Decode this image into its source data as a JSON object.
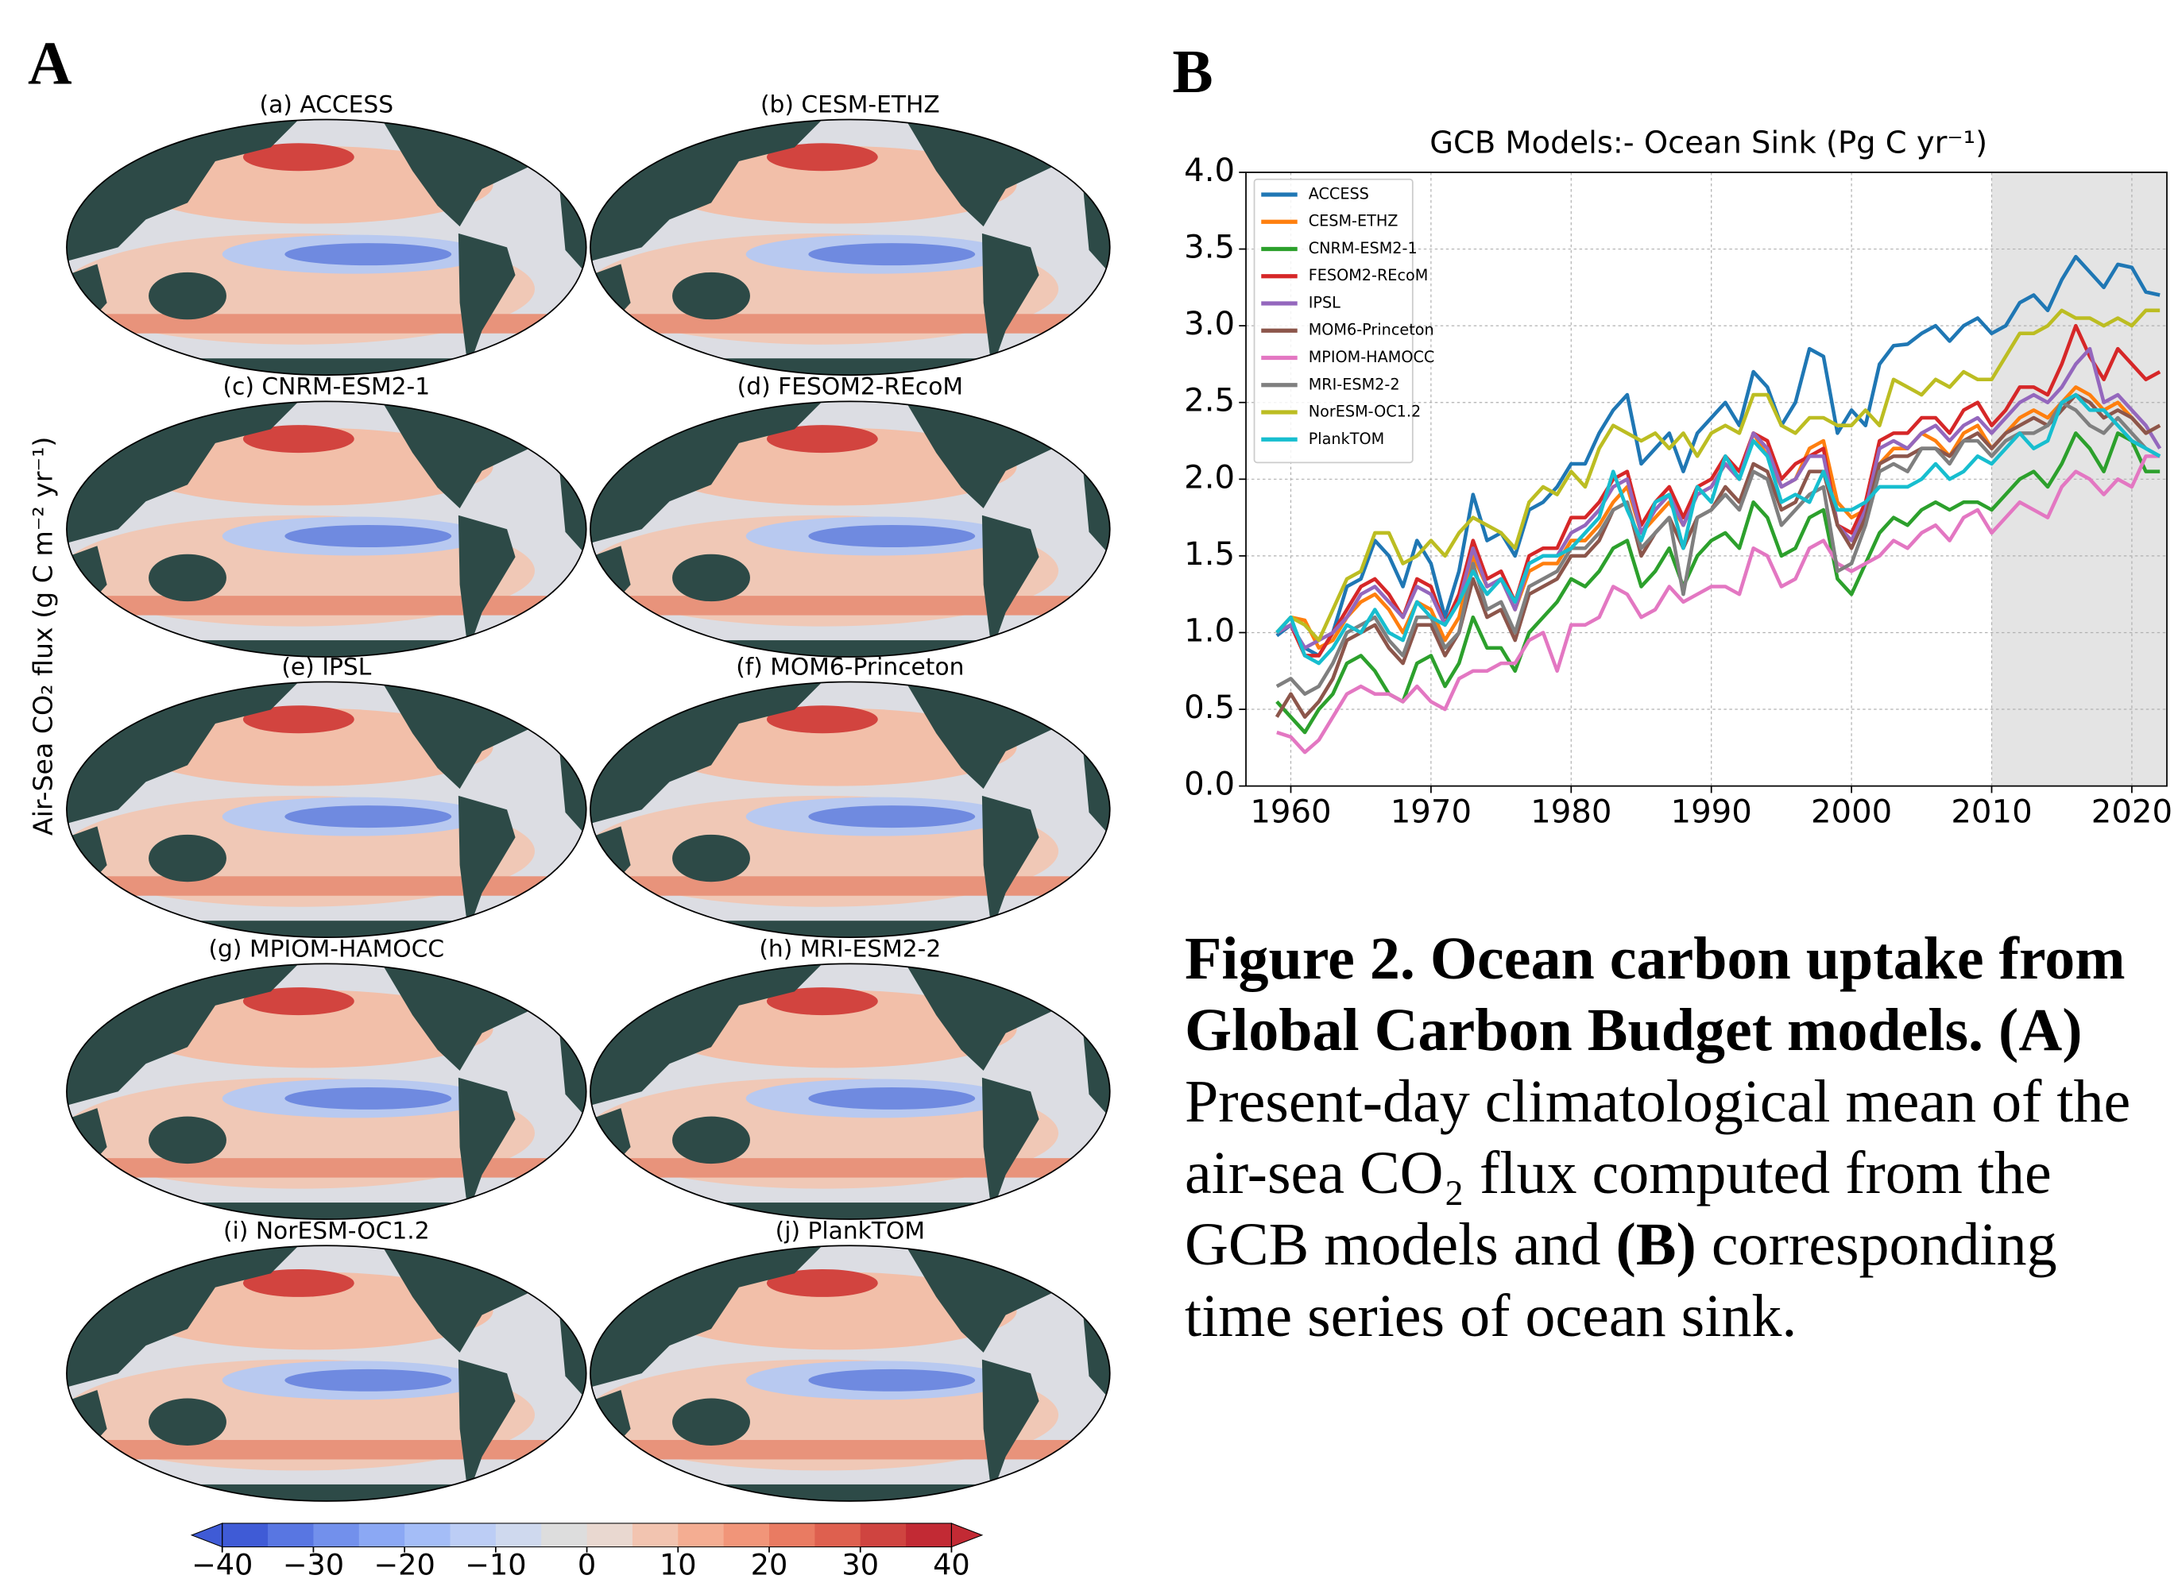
{
  "panel_a": {
    "label": "A",
    "ylabel": "Air-Sea CO₂ flux (g C m⁻² yr⁻¹)",
    "maps": [
      "(a) ACCESS",
      "(b) CESM-ETHZ",
      "(c) CNRM-ESM2-1",
      "(d) FESOM2-REcoM",
      "(e) IPSL",
      "(f) MOM6-Princeton",
      "(g) MPIOM-HAMOCC",
      "(h) MRI-ESM2-2",
      "(i) NorESM-OC1.2",
      "(j) PlankTOM"
    ],
    "colorbar": {
      "lim": [
        -40,
        40
      ],
      "ticks": [
        {
          "value": -40,
          "label": "−40"
        },
        {
          "value": -30,
          "label": "−30"
        },
        {
          "value": -20,
          "label": "−20"
        },
        {
          "value": -10,
          "label": "−10"
        },
        0,
        10,
        20,
        30,
        40
      ],
      "colors": [
        "#3f5bd6",
        "#5876e2",
        "#7290ec",
        "#8ba8f4",
        "#a4bdf7",
        "#bccdf5",
        "#cfd9ee",
        "#dddddd",
        "#e9d8d0",
        "#f2c4b0",
        "#f4ad92",
        "#f19579",
        "#e97b62",
        "#de604f",
        "#cf4440",
        "#c22a34"
      ]
    }
  },
  "chart_data": {
    "type": "line",
    "panel_label": "B",
    "title": "GCB Models:- Ocean Sink (Pg C yr⁻¹)",
    "x": [
      1959,
      1960,
      1961,
      1962,
      1963,
      1964,
      1965,
      1966,
      1967,
      1968,
      1969,
      1970,
      1971,
      1972,
      1973,
      1974,
      1975,
      1976,
      1977,
      1978,
      1979,
      1980,
      1981,
      1982,
      1983,
      1984,
      1985,
      1986,
      1987,
      1988,
      1989,
      1990,
      1991,
      1992,
      1993,
      1994,
      1995,
      1996,
      1997,
      1998,
      1999,
      2000,
      2001,
      2002,
      2003,
      2004,
      2005,
      2006,
      2007,
      2008,
      2009,
      2010,
      2011,
      2012,
      2013,
      2014,
      2015,
      2016,
      2017,
      2018,
      2019,
      2020,
      2021,
      2022
    ],
    "xlim": [
      1956.8,
      2022.5
    ],
    "xticks": [
      1960,
      1970,
      1980,
      1990,
      2000,
      2010,
      2020
    ],
    "ylim": [
      0,
      4
    ],
    "yticks": [
      {
        "value": 0,
        "label": "0.0"
      },
      {
        "value": 0.5,
        "label": "0.5"
      },
      {
        "value": 1,
        "label": "1.0"
      },
      {
        "value": 1.5,
        "label": "1.5"
      },
      {
        "value": 2,
        "label": "2.0"
      },
      {
        "value": 2.5,
        "label": "2.5"
      },
      {
        "value": 3,
        "label": "3.0"
      },
      {
        "value": 3.5,
        "label": "3.5"
      },
      {
        "value": 4,
        "label": "4.0"
      }
    ],
    "grid": true,
    "legend": "upper-left",
    "shade_from": 2010,
    "series": [
      {
        "name": "ACCESS",
        "color": "#1f77b4",
        "values": [
          0.98,
          1.05,
          0.9,
          0.85,
          1.0,
          1.3,
          1.35,
          1.6,
          1.5,
          1.3,
          1.6,
          1.45,
          1.1,
          1.4,
          1.9,
          1.6,
          1.65,
          1.5,
          1.8,
          1.85,
          1.95,
          2.1,
          2.1,
          2.3,
          2.45,
          2.55,
          2.1,
          2.2,
          2.3,
          2.05,
          2.3,
          2.4,
          2.5,
          2.35,
          2.7,
          2.6,
          2.35,
          2.5,
          2.85,
          2.8,
          2.3,
          2.45,
          2.35,
          2.75,
          2.87,
          2.88,
          2.95,
          3.0,
          2.9,
          3.0,
          3.05,
          2.95,
          3.0,
          3.15,
          3.2,
          3.1,
          3.3,
          3.45,
          3.35,
          3.25,
          3.4,
          3.38,
          3.22,
          3.2
        ]
      },
      {
        "name": "CESM-ETHZ",
        "color": "#ff7f0e",
        "values": [
          1.0,
          1.1,
          1.08,
          0.9,
          0.95,
          1.1,
          1.2,
          1.25,
          1.15,
          1.0,
          1.2,
          1.15,
          0.95,
          1.1,
          1.5,
          1.3,
          1.35,
          1.15,
          1.4,
          1.45,
          1.45,
          1.6,
          1.6,
          1.7,
          1.85,
          1.95,
          1.65,
          1.75,
          1.85,
          1.7,
          1.9,
          1.95,
          2.1,
          2.0,
          2.3,
          2.15,
          1.95,
          2.0,
          2.2,
          2.25,
          1.85,
          1.75,
          1.8,
          2.1,
          2.2,
          2.2,
          2.3,
          2.25,
          2.15,
          2.3,
          2.35,
          2.2,
          2.3,
          2.4,
          2.45,
          2.4,
          2.5,
          2.6,
          2.55,
          2.45,
          2.5,
          2.4,
          2.3,
          2.35
        ]
      },
      {
        "name": "CNRM-ESM2-1",
        "color": "#2ca02c",
        "values": [
          0.55,
          0.45,
          0.35,
          0.5,
          0.6,
          0.8,
          0.85,
          0.75,
          0.6,
          0.55,
          0.8,
          0.85,
          0.65,
          0.8,
          1.1,
          0.9,
          0.9,
          0.75,
          1.0,
          1.1,
          1.2,
          1.35,
          1.3,
          1.4,
          1.55,
          1.6,
          1.3,
          1.4,
          1.55,
          1.3,
          1.5,
          1.6,
          1.65,
          1.55,
          1.85,
          1.75,
          1.5,
          1.55,
          1.75,
          1.8,
          1.35,
          1.25,
          1.45,
          1.65,
          1.75,
          1.7,
          1.8,
          1.85,
          1.8,
          1.85,
          1.85,
          1.8,
          1.9,
          2.0,
          2.05,
          1.95,
          2.1,
          2.3,
          2.2,
          2.05,
          2.3,
          2.25,
          2.05,
          2.05
        ]
      },
      {
        "name": "FESOM2-REcoM",
        "color": "#d62728",
        "values": [
          1.0,
          1.05,
          0.85,
          0.85,
          1.0,
          1.15,
          1.3,
          1.35,
          1.25,
          1.1,
          1.35,
          1.3,
          1.05,
          1.25,
          1.6,
          1.35,
          1.4,
          1.2,
          1.5,
          1.55,
          1.55,
          1.75,
          1.75,
          1.85,
          2.0,
          2.05,
          1.7,
          1.85,
          1.95,
          1.75,
          1.95,
          2.0,
          2.15,
          2.05,
          2.3,
          2.25,
          2.0,
          2.1,
          2.15,
          2.2,
          1.7,
          1.65,
          1.85,
          2.25,
          2.3,
          2.3,
          2.4,
          2.4,
          2.3,
          2.45,
          2.5,
          2.35,
          2.45,
          2.6,
          2.6,
          2.55,
          2.75,
          3.0,
          2.8,
          2.65,
          2.85,
          2.75,
          2.65,
          2.7
        ]
      },
      {
        "name": "IPSL",
        "color": "#9467bd",
        "values": [
          1.0,
          1.05,
          0.9,
          0.95,
          1.0,
          1.1,
          1.25,
          1.3,
          1.2,
          1.1,
          1.3,
          1.25,
          1.05,
          1.2,
          1.55,
          1.3,
          1.35,
          1.15,
          1.45,
          1.5,
          1.5,
          1.65,
          1.7,
          1.8,
          1.95,
          2.0,
          1.65,
          1.8,
          1.9,
          1.7,
          1.9,
          1.95,
          2.1,
          2.0,
          2.3,
          2.2,
          1.95,
          2.0,
          2.15,
          2.15,
          1.7,
          1.6,
          1.8,
          2.2,
          2.25,
          2.2,
          2.3,
          2.35,
          2.25,
          2.35,
          2.4,
          2.3,
          2.4,
          2.5,
          2.55,
          2.5,
          2.6,
          2.75,
          2.85,
          2.5,
          2.55,
          2.45,
          2.35,
          2.2
        ]
      },
      {
        "name": "MOM6-Princeton",
        "color": "#8c564b",
        "values": [
          0.45,
          0.6,
          0.45,
          0.55,
          0.7,
          0.95,
          1.0,
          1.05,
          0.9,
          0.8,
          1.05,
          1.05,
          0.85,
          1.0,
          1.35,
          1.1,
          1.15,
          0.95,
          1.25,
          1.3,
          1.35,
          1.5,
          1.5,
          1.6,
          1.8,
          1.85,
          1.5,
          1.65,
          1.75,
          1.55,
          1.75,
          1.8,
          1.95,
          1.85,
          2.1,
          2.05,
          1.8,
          1.85,
          2.05,
          2.05,
          1.7,
          1.55,
          1.75,
          2.1,
          2.15,
          2.15,
          2.2,
          2.2,
          2.15,
          2.25,
          2.3,
          2.2,
          2.3,
          2.35,
          2.4,
          2.35,
          2.45,
          2.55,
          2.5,
          2.4,
          2.45,
          2.4,
          2.3,
          2.35
        ]
      },
      {
        "name": "MPIOM-HAMOCC",
        "color": "#e377c2",
        "values": [
          0.35,
          0.32,
          0.22,
          0.3,
          0.45,
          0.6,
          0.65,
          0.6,
          0.6,
          0.55,
          0.65,
          0.55,
          0.5,
          0.7,
          0.75,
          0.75,
          0.8,
          0.8,
          0.95,
          1.0,
          0.75,
          1.05,
          1.05,
          1.1,
          1.3,
          1.25,
          1.1,
          1.15,
          1.3,
          1.2,
          1.25,
          1.3,
          1.3,
          1.25,
          1.55,
          1.5,
          1.3,
          1.35,
          1.55,
          1.6,
          1.45,
          1.4,
          1.45,
          1.5,
          1.6,
          1.55,
          1.65,
          1.7,
          1.6,
          1.75,
          1.8,
          1.65,
          1.75,
          1.85,
          1.8,
          1.75,
          1.95,
          2.05,
          2.0,
          1.9,
          2.0,
          1.95,
          2.15,
          2.15
        ]
      },
      {
        "name": "MRI-ESM2-2",
        "color": "#7f7f7f",
        "values": [
          0.65,
          0.7,
          0.6,
          0.65,
          0.8,
          1.0,
          1.05,
          1.1,
          0.95,
          0.85,
          1.1,
          1.1,
          0.9,
          1.0,
          1.45,
          1.15,
          1.2,
          1.0,
          1.3,
          1.35,
          1.4,
          1.55,
          1.55,
          1.65,
          1.8,
          1.85,
          1.55,
          1.65,
          1.75,
          1.25,
          1.75,
          1.8,
          1.9,
          1.8,
          2.05,
          2.0,
          1.7,
          1.8,
          1.9,
          1.95,
          1.4,
          1.45,
          1.7,
          2.05,
          2.1,
          2.05,
          2.2,
          2.2,
          2.1,
          2.25,
          2.25,
          2.15,
          2.25,
          2.3,
          2.3,
          2.35,
          2.5,
          2.45,
          2.35,
          2.3,
          2.4,
          2.3,
          2.2,
          2.15
        ]
      },
      {
        "name": "NorESM-OC1.2",
        "color": "#bcbd22",
        "values": [
          1.0,
          1.1,
          1.05,
          0.95,
          1.15,
          1.35,
          1.4,
          1.65,
          1.65,
          1.45,
          1.5,
          1.6,
          1.5,
          1.65,
          1.75,
          1.7,
          1.65,
          1.55,
          1.85,
          1.95,
          1.9,
          2.05,
          1.95,
          2.2,
          2.35,
          2.3,
          2.25,
          2.3,
          2.2,
          2.3,
          2.15,
          2.3,
          2.35,
          2.3,
          2.55,
          2.55,
          2.35,
          2.3,
          2.4,
          2.4,
          2.35,
          2.35,
          2.45,
          2.35,
          2.65,
          2.6,
          2.55,
          2.65,
          2.6,
          2.7,
          2.65,
          2.65,
          2.8,
          2.95,
          2.95,
          3.0,
          3.1,
          3.05,
          3.05,
          3.0,
          3.05,
          3.0,
          3.1,
          3.1
        ]
      },
      {
        "name": "PlankTOM",
        "color": "#17becf",
        "values": [
          1.0,
          1.1,
          0.85,
          0.8,
          0.9,
          1.05,
          1.0,
          1.15,
          1.0,
          0.95,
          1.2,
          1.1,
          1.05,
          1.2,
          1.4,
          1.25,
          1.35,
          1.2,
          1.45,
          1.5,
          1.5,
          1.55,
          1.65,
          1.75,
          2.05,
          1.8,
          1.6,
          1.85,
          1.9,
          1.55,
          1.95,
          1.85,
          2.15,
          2.0,
          2.25,
          2.15,
          1.85,
          1.9,
          1.85,
          2.05,
          1.8,
          1.8,
          1.85,
          1.95,
          1.95,
          1.95,
          2.0,
          2.1,
          2.0,
          2.05,
          2.15,
          2.1,
          2.2,
          2.3,
          2.2,
          2.25,
          2.5,
          2.55,
          2.45,
          2.45,
          2.35,
          2.25,
          2.2,
          2.15
        ]
      }
    ]
  },
  "caption": {
    "title": "Figure 2. Ocean carbon uptake from Global Carbon Budget models.",
    "panel_a": "(A)",
    "text_a": "Present-day climatological mean of the air-sea CO₂ flux computed  from the GCB models and",
    "panel_b": "(B)",
    "text_b": "corresponding time series of ocean sink."
  }
}
